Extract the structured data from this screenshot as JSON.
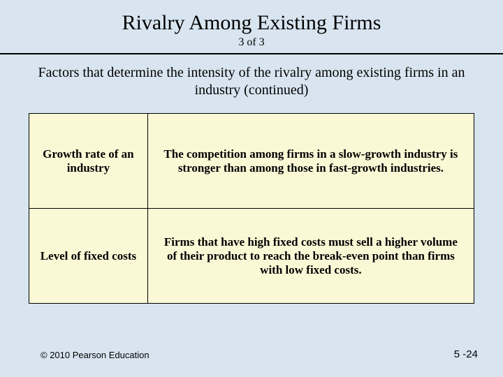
{
  "title": "Rivalry Among Existing Firms",
  "subtitle": "3 of 3",
  "intro": "Factors that determine the intensity of the rivalry among existing firms in an industry (continued)",
  "table": {
    "rows": [
      {
        "left": "Growth rate of an industry",
        "right": "The competition among firms in a slow-growth industry is stronger than among those in fast-growth industries."
      },
      {
        "left": "Level of fixed costs",
        "right": "Firms that have high fixed costs must sell a higher volume of their product to reach the break-even point than firms with low fixed costs."
      }
    ]
  },
  "footer": {
    "copyright": "© 2010 Pearson Education",
    "page": "5 -24"
  },
  "colors": {
    "background": "#d8e5f0",
    "cell_bg": "#fbf8d6",
    "border": "#000000",
    "text": "#000000"
  }
}
